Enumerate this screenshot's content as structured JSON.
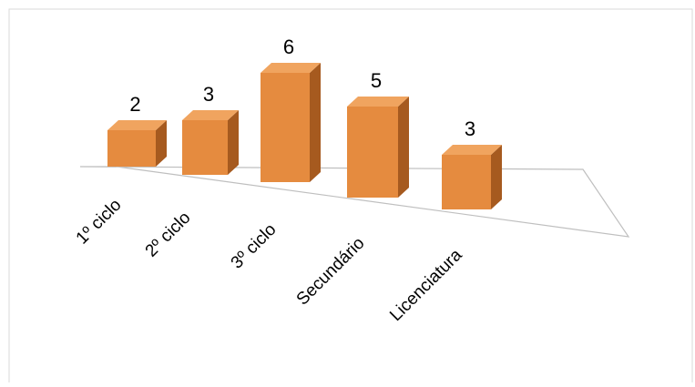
{
  "chart_data": {
    "type": "bar",
    "categories": [
      "1º ciclo",
      "2º ciclo",
      "3º ciclo",
      "Secundário",
      "Licenciatura"
    ],
    "values": [
      2,
      3,
      6,
      5,
      3
    ],
    "title": "",
    "xlabel": "",
    "ylabel": "",
    "data_labels": true,
    "grid": false,
    "style": "3d-column",
    "colors": {
      "bar_front": "#E58B3F",
      "bar_top": "#F0A45F",
      "bar_side": "#A65A1F",
      "floor_line": "#BFBFBF",
      "frame": "#D9D9D9"
    }
  }
}
